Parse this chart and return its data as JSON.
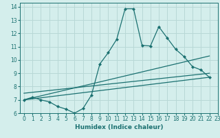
{
  "xlabel": "Humidex (Indice chaleur)",
  "ylabel": "",
  "bg_color": "#d4eeec",
  "grid_color": "#b8d8d6",
  "line_color": "#1a7070",
  "xlim": [
    -0.5,
    23
  ],
  "ylim": [
    6,
    14.3
  ],
  "xticks": [
    0,
    1,
    2,
    3,
    4,
    5,
    6,
    7,
    8,
    9,
    10,
    11,
    12,
    13,
    14,
    15,
    16,
    17,
    18,
    19,
    20,
    21,
    22,
    23
  ],
  "yticks": [
    6,
    7,
    8,
    9,
    10,
    11,
    12,
    13,
    14
  ],
  "line1_x": [
    0,
    1,
    2,
    3,
    4,
    5,
    6,
    7,
    8,
    9,
    10,
    11,
    12,
    13,
    14,
    15,
    16,
    17,
    18,
    19,
    20,
    21,
    22
  ],
  "line1_y": [
    7.0,
    7.2,
    7.0,
    6.85,
    6.5,
    6.3,
    6.0,
    6.35,
    7.35,
    9.7,
    10.55,
    11.55,
    13.85,
    13.85,
    11.1,
    11.05,
    12.5,
    11.65,
    10.8,
    10.25,
    9.5,
    9.25,
    8.7
  ],
  "line2_x": [
    0,
    22
  ],
  "line2_y": [
    7.0,
    10.3
  ],
  "line3_x": [
    0,
    22
  ],
  "line3_y": [
    7.0,
    8.7
  ],
  "line4_x": [
    0,
    22
  ],
  "line4_y": [
    7.5,
    9.0
  ],
  "tick_fontsize": 5.5,
  "xlabel_fontsize": 6.5
}
